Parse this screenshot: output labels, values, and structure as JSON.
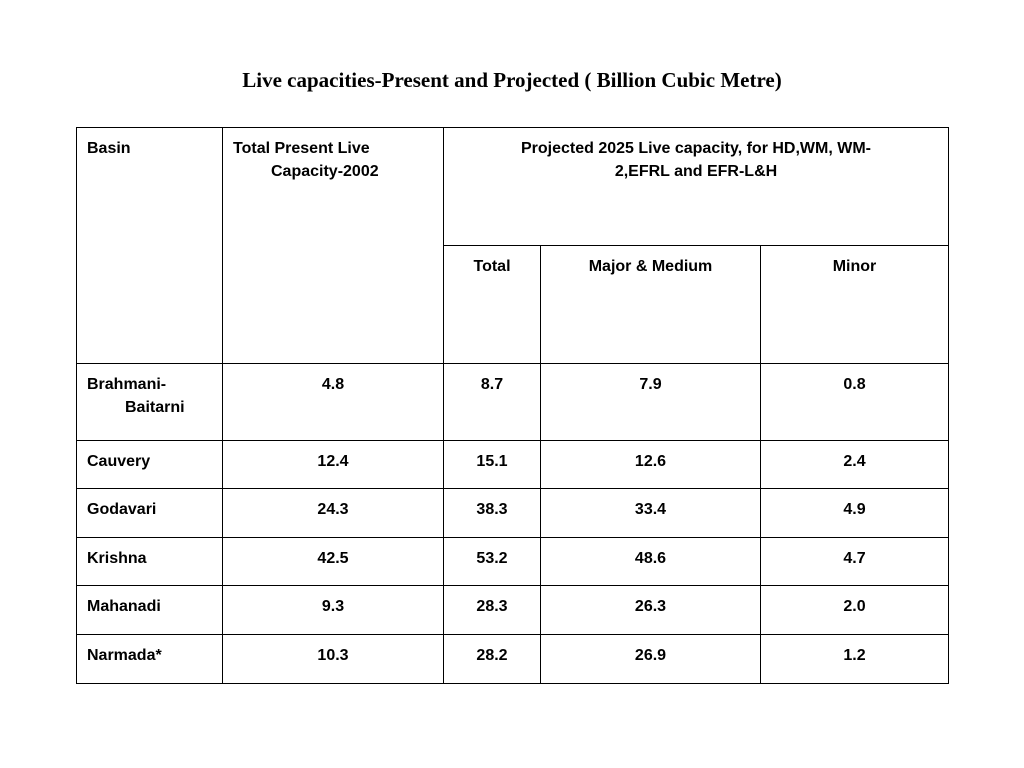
{
  "title": "Live capacities-Present and Projected ( Billion Cubic Metre)",
  "table": {
    "header": {
      "basin": "Basin",
      "present_line1": "Total Present Live",
      "present_line2": "Capacity-2002",
      "projected_line1": "Projected 2025 Live capacity, for HD,WM, WM-",
      "projected_line2": "2,EFRL and EFR-L&H",
      "sub_total": "Total",
      "sub_major": "Major & Medium",
      "sub_minor": "Minor"
    },
    "rows": [
      {
        "basin_line1": "Brahmani-",
        "basin_line2": "Baitarni",
        "present": "4.8",
        "total": "8.7",
        "major": "7.9",
        "minor": "0.8"
      },
      {
        "basin": "Cauvery",
        "present": "12.4",
        "total": "15.1",
        "major": "12.6",
        "minor": "2.4"
      },
      {
        "basin": "Godavari",
        "present": "24.3",
        "total": "38.3",
        "major": "33.4",
        "minor": "4.9"
      },
      {
        "basin": "Krishna",
        "present": "42.5",
        "total": "53.2",
        "major": "48.6",
        "minor": "4.7"
      },
      {
        "basin": "Mahanadi",
        "present": "9.3",
        "total": "28.3",
        "major": "26.3",
        "minor": "2.0"
      },
      {
        "basin": "Narmada*",
        "present": "10.3",
        "total": "28.2",
        "major": "26.9",
        "minor": "1.2"
      }
    ]
  }
}
